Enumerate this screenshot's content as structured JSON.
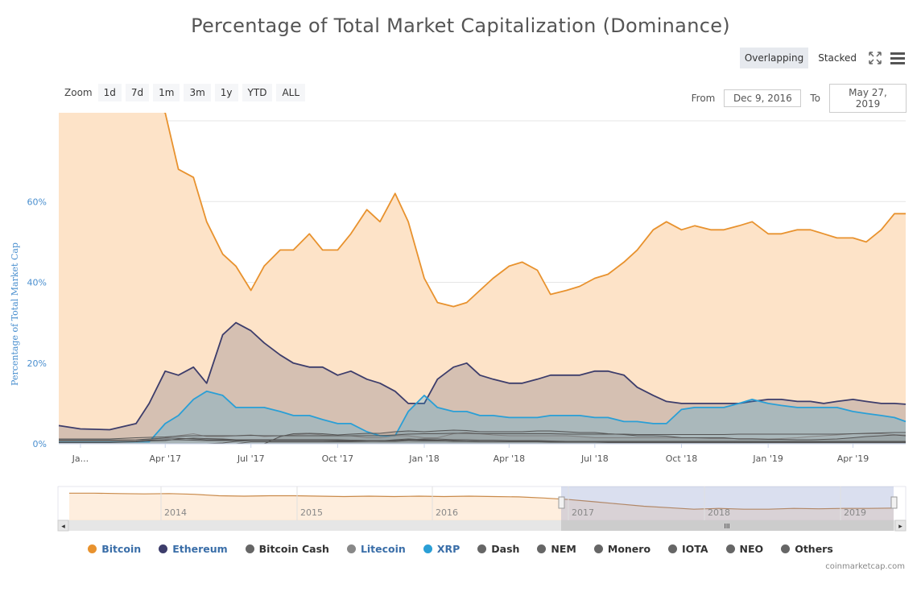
{
  "chart_data": {
    "type": "area",
    "title": "Percentage of Total Market Capitalization (Dominance)",
    "ylabel": "Percentage of Total Market Cap",
    "ylim": [
      0,
      80
    ],
    "y_ticks": [
      "0%",
      "20%",
      "40%",
      "60%"
    ],
    "x_ticks": [
      "Ja...",
      "Apr '17",
      "Jul '17",
      "Oct '17",
      "Jan '18",
      "Apr '18",
      "Jul '18",
      "Oct '18",
      "Jan '19",
      "Apr '19"
    ],
    "grid": true,
    "legend_position": "bottom",
    "x_dates": [
      "2016-12-09",
      "2017-01-01",
      "2017-02-01",
      "2017-03-01",
      "2017-03-15",
      "2017-04-01",
      "2017-04-15",
      "2017-05-01",
      "2017-05-15",
      "2017-06-01",
      "2017-06-15",
      "2017-07-01",
      "2017-07-15",
      "2017-08-01",
      "2017-08-15",
      "2017-09-01",
      "2017-09-15",
      "2017-10-01",
      "2017-10-15",
      "2017-11-01",
      "2017-11-15",
      "2017-12-01",
      "2017-12-15",
      "2018-01-01",
      "2018-01-15",
      "2018-02-01",
      "2018-02-15",
      "2018-03-01",
      "2018-03-15",
      "2018-04-01",
      "2018-04-15",
      "2018-05-01",
      "2018-05-15",
      "2018-06-01",
      "2018-06-15",
      "2018-07-01",
      "2018-07-15",
      "2018-08-01",
      "2018-08-15",
      "2018-09-01",
      "2018-09-15",
      "2018-10-01",
      "2018-10-15",
      "2018-11-01",
      "2018-11-15",
      "2018-12-01",
      "2018-12-15",
      "2019-01-01",
      "2019-01-15",
      "2019-02-01",
      "2019-02-15",
      "2019-03-01",
      "2019-03-15",
      "2019-04-01",
      "2019-04-15",
      "2019-05-01",
      "2019-05-15",
      "2019-05-27"
    ],
    "series": [
      {
        "name": "Bitcoin",
        "color": "#e8922e",
        "values": [
          86,
          87,
          85,
          85,
          84,
          82,
          68,
          66,
          55,
          47,
          44,
          38,
          44,
          48,
          48,
          52,
          48,
          48,
          52,
          58,
          55,
          62,
          55,
          41,
          35,
          34,
          35,
          38,
          41,
          44,
          45,
          43,
          37,
          38,
          39,
          41,
          42,
          45,
          48,
          53,
          55,
          53,
          54,
          53,
          53,
          54,
          55,
          52,
          52,
          53,
          53,
          52,
          51,
          51,
          50,
          53,
          57,
          57
        ]
      },
      {
        "name": "Ethereum",
        "color": "#3d3d6b",
        "values": [
          4.5,
          3.7,
          3.5,
          5.0,
          10,
          18,
          17,
          19,
          15,
          27,
          30,
          28,
          25,
          22,
          20,
          19,
          19,
          17,
          18,
          16,
          15,
          13,
          10,
          10,
          16,
          19,
          20,
          17,
          16,
          15,
          15,
          16,
          17,
          17,
          17,
          18,
          18,
          17,
          14,
          12,
          10.5,
          10,
          10,
          10,
          10,
          10,
          10.5,
          11,
          11,
          10.5,
          10.5,
          10,
          10.5,
          11,
          10.5,
          10,
          10,
          9.8
        ]
      },
      {
        "name": "Bitcoin Cash",
        "color": "#555555",
        "values": [
          0,
          0,
          0,
          0,
          0,
          0,
          0,
          0,
          0,
          0,
          0,
          0,
          0,
          1.8,
          2.5,
          2.6,
          2.5,
          2.2,
          2.4,
          2.6,
          2.6,
          3,
          3.2,
          3,
          3.2,
          3.4,
          3.3,
          3.0,
          3.0,
          3.0,
          3.0,
          3.2,
          3.2,
          3.0,
          2.8,
          2.8,
          2.5,
          2.3,
          2.0,
          2.0,
          1.9,
          1.5,
          1.5,
          1.5,
          1.5,
          1.2,
          1.2,
          1.1,
          1.1,
          1.0,
          1.0,
          1.1,
          1.2,
          1.5,
          1.8,
          2.0,
          2.2,
          2.0
        ]
      },
      {
        "name": "Litecoin",
        "color": "#888888",
        "values": [
          1.0,
          1.0,
          1.0,
          1.0,
          1.0,
          1.5,
          2.0,
          2.5,
          1.8,
          1.8,
          2.0,
          2.2,
          1.8,
          2.0,
          2.2,
          2.5,
          2.2,
          2.0,
          2.0,
          1.5,
          1.5,
          2.0,
          2.0,
          1.5,
          1.5,
          2.5,
          2.8,
          2.5,
          2.2,
          2.0,
          2.0,
          2.0,
          2.0,
          2.0,
          1.8,
          1.5,
          1.5,
          1.5,
          1.5,
          1.5,
          1.5,
          1.5,
          1.5,
          1.3,
          1.3,
          1.3,
          1.3,
          1.2,
          1.3,
          1.5,
          1.8,
          2.0,
          2.2,
          2.5,
          2.5,
          2.5,
          2.3,
          2.2
        ]
      },
      {
        "name": "XRP",
        "color": "#2a9fd6",
        "values": [
          0.5,
          0.5,
          0.5,
          0.5,
          0.5,
          5,
          7,
          11,
          13,
          12,
          9,
          9,
          9,
          8,
          7,
          7,
          6,
          5,
          5,
          3,
          2,
          2,
          8,
          12,
          9,
          8,
          8,
          7,
          7,
          6.5,
          6.5,
          6.5,
          7,
          7,
          7,
          6.5,
          6.5,
          5.5,
          5.5,
          5,
          5,
          8.5,
          9,
          9,
          9,
          10,
          11,
          10,
          9.5,
          9,
          9,
          9,
          9,
          8,
          7.5,
          7,
          6.5,
          5.5
        ]
      },
      {
        "name": "Dash",
        "color": "#555555",
        "values": [
          0.9,
          0.9,
          0.9,
          1.0,
          1.2,
          1.4,
          1.4,
          1.2,
          1.0,
          1.0,
          1.0,
          1.0,
          1.0,
          1.0,
          1.0,
          1.0,
          1.0,
          0.9,
          0.9,
          0.8,
          0.8,
          0.8,
          0.8,
          0.7,
          0.7,
          0.7,
          0.7,
          0.6,
          0.6,
          0.6,
          0.6,
          0.6,
          0.6,
          0.6,
          0.6,
          0.6,
          0.6,
          0.5,
          0.5,
          0.5,
          0.5,
          0.5,
          0.5,
          0.4,
          0.4,
          0.4,
          0.4,
          0.4,
          0.4,
          0.4,
          0.4,
          0.4,
          0.4,
          0.4,
          0.4,
          0.4,
          0.4,
          0.4
        ]
      },
      {
        "name": "NEM",
        "color": "#555555",
        "values": [
          0.3,
          0.3,
          0.3,
          0.5,
          0.7,
          0.8,
          1.2,
          1.4,
          1.3,
          1.2,
          1.0,
          1.0,
          1.0,
          0.9,
          0.9,
          0.8,
          0.8,
          0.7,
          0.7,
          0.7,
          0.6,
          0.6,
          0.8,
          0.9,
          0.8,
          0.6,
          0.6,
          0.5,
          0.5,
          0.5,
          0.5,
          0.5,
          0.4,
          0.4,
          0.4,
          0.4,
          0.3,
          0.3,
          0.3,
          0.3,
          0.3,
          0.3,
          0.3,
          0.3,
          0.3,
          0.3,
          0.3,
          0.3,
          0.3,
          0.3,
          0.3,
          0.3,
          0.3,
          0.3,
          0.3,
          0.3,
          0.3,
          0.3
        ]
      },
      {
        "name": "Monero",
        "color": "#555555",
        "values": [
          0.6,
          0.6,
          0.6,
          0.7,
          0.9,
          1.0,
          1.0,
          0.9,
          0.8,
          0.8,
          0.8,
          0.8,
          0.8,
          0.8,
          0.8,
          0.8,
          0.8,
          0.8,
          0.8,
          0.8,
          0.8,
          0.8,
          0.8,
          0.7,
          0.7,
          0.7,
          0.7,
          0.6,
          0.6,
          0.6,
          0.6,
          0.6,
          0.6,
          0.6,
          0.6,
          0.6,
          0.6,
          0.6,
          0.6,
          0.6,
          0.6,
          0.6,
          0.6,
          0.6,
          0.6,
          0.6,
          0.6,
          0.6,
          0.6,
          0.6,
          0.6,
          0.6,
          0.6,
          0.6,
          0.6,
          0.6,
          0.6,
          0.6
        ]
      },
      {
        "name": "IOTA",
        "color": "#555555",
        "values": [
          0,
          0,
          0,
          0,
          0,
          0,
          0,
          0,
          0,
          0,
          0,
          0.5,
          0.5,
          0.5,
          0.5,
          0.5,
          0.5,
          0.5,
          0.5,
          0.6,
          0.7,
          1.0,
          1.2,
          1.0,
          0.9,
          0.8,
          0.7,
          0.6,
          0.6,
          0.6,
          0.6,
          0.6,
          0.6,
          0.5,
          0.5,
          0.5,
          0.5,
          0.5,
          0.4,
          0.4,
          0.4,
          0.4,
          0.4,
          0.4,
          0.4,
          0.4,
          0.3,
          0.3,
          0.3,
          0.3,
          0.3,
          0.3,
          0.3,
          0.3,
          0.3,
          0.3,
          0.3,
          0.3
        ]
      },
      {
        "name": "NEO",
        "color": "#555555",
        "values": [
          0,
          0,
          0,
          0,
          0,
          0,
          0,
          0,
          0,
          0.2,
          0.6,
          0.8,
          0.8,
          0.9,
          1.0,
          1.0,
          1.0,
          1.0,
          0.9,
          0.8,
          0.8,
          0.8,
          1.0,
          1.2,
          1.2,
          1.0,
          1.0,
          0.9,
          0.9,
          0.8,
          0.8,
          0.8,
          0.7,
          0.6,
          0.6,
          0.6,
          0.5,
          0.5,
          0.5,
          0.5,
          0.5,
          0.5,
          0.5,
          0.5,
          0.5,
          0.4,
          0.4,
          0.4,
          0.4,
          0.4,
          0.4,
          0.4,
          0.4,
          0.4,
          0.4,
          0.4,
          0.4,
          0.4
        ]
      },
      {
        "name": "Others",
        "color": "#555555",
        "values": [
          1.2,
          1.2,
          1.2,
          1.5,
          1.6,
          1.7,
          1.9,
          2.0,
          2.0,
          2.0,
          2.0,
          2.1,
          2.0,
          2.0,
          2.0,
          2.0,
          2.0,
          2.0,
          2.0,
          2.0,
          2.0,
          2.2,
          2.4,
          2.5,
          2.5,
          2.6,
          2.6,
          2.5,
          2.5,
          2.5,
          2.5,
          2.5,
          2.5,
          2.4,
          2.4,
          2.4,
          2.4,
          2.4,
          2.3,
          2.3,
          2.3,
          2.3,
          2.3,
          2.3,
          2.3,
          2.4,
          2.4,
          2.4,
          2.4,
          2.4,
          2.4,
          2.4,
          2.4,
          2.5,
          2.6,
          2.7,
          2.8,
          2.8
        ]
      }
    ]
  },
  "toolbar": {
    "overlapping_label": "Overlapping",
    "stacked_label": "Stacked",
    "fullscreen_icon": "fullscreen-icon",
    "menu_icon": "hamburger-icon"
  },
  "zoom": {
    "label": "Zoom",
    "buttons": [
      "1d",
      "7d",
      "1m",
      "3m",
      "1y",
      "YTD",
      "ALL"
    ]
  },
  "range": {
    "from_label": "From",
    "from_value": "Dec 9, 2016",
    "to_label": "To",
    "to_value": "May 27, 2019"
  },
  "navigator": {
    "year_labels": [
      "2014",
      "2015",
      "2016",
      "2017",
      "2018",
      "2019"
    ],
    "handle_glyph": "III",
    "arrow_left": "◂",
    "arrow_right": "▸"
  },
  "legend": {
    "items": [
      {
        "label": "Bitcoin",
        "color": "#e8922e",
        "text_color": "#3a6ea8"
      },
      {
        "label": "Ethereum",
        "color": "#3d3d6b",
        "text_color": "#3a6ea8"
      },
      {
        "label": "Bitcoin Cash",
        "color": "#666666",
        "text_color": "#333333"
      },
      {
        "label": "Litecoin",
        "color": "#888888",
        "text_color": "#3a6ea8"
      },
      {
        "label": "XRP",
        "color": "#2a9fd6",
        "text_color": "#3a6ea8"
      },
      {
        "label": "Dash",
        "color": "#666666",
        "text_color": "#333333"
      },
      {
        "label": "NEM",
        "color": "#666666",
        "text_color": "#333333"
      },
      {
        "label": "Monero",
        "color": "#666666",
        "text_color": "#333333"
      },
      {
        "label": "IOTA",
        "color": "#666666",
        "text_color": "#333333"
      },
      {
        "label": "NEO",
        "color": "#666666",
        "text_color": "#333333"
      },
      {
        "label": "Others",
        "color": "#666666",
        "text_color": "#333333"
      }
    ]
  },
  "credit": "coinmarketcap.com"
}
